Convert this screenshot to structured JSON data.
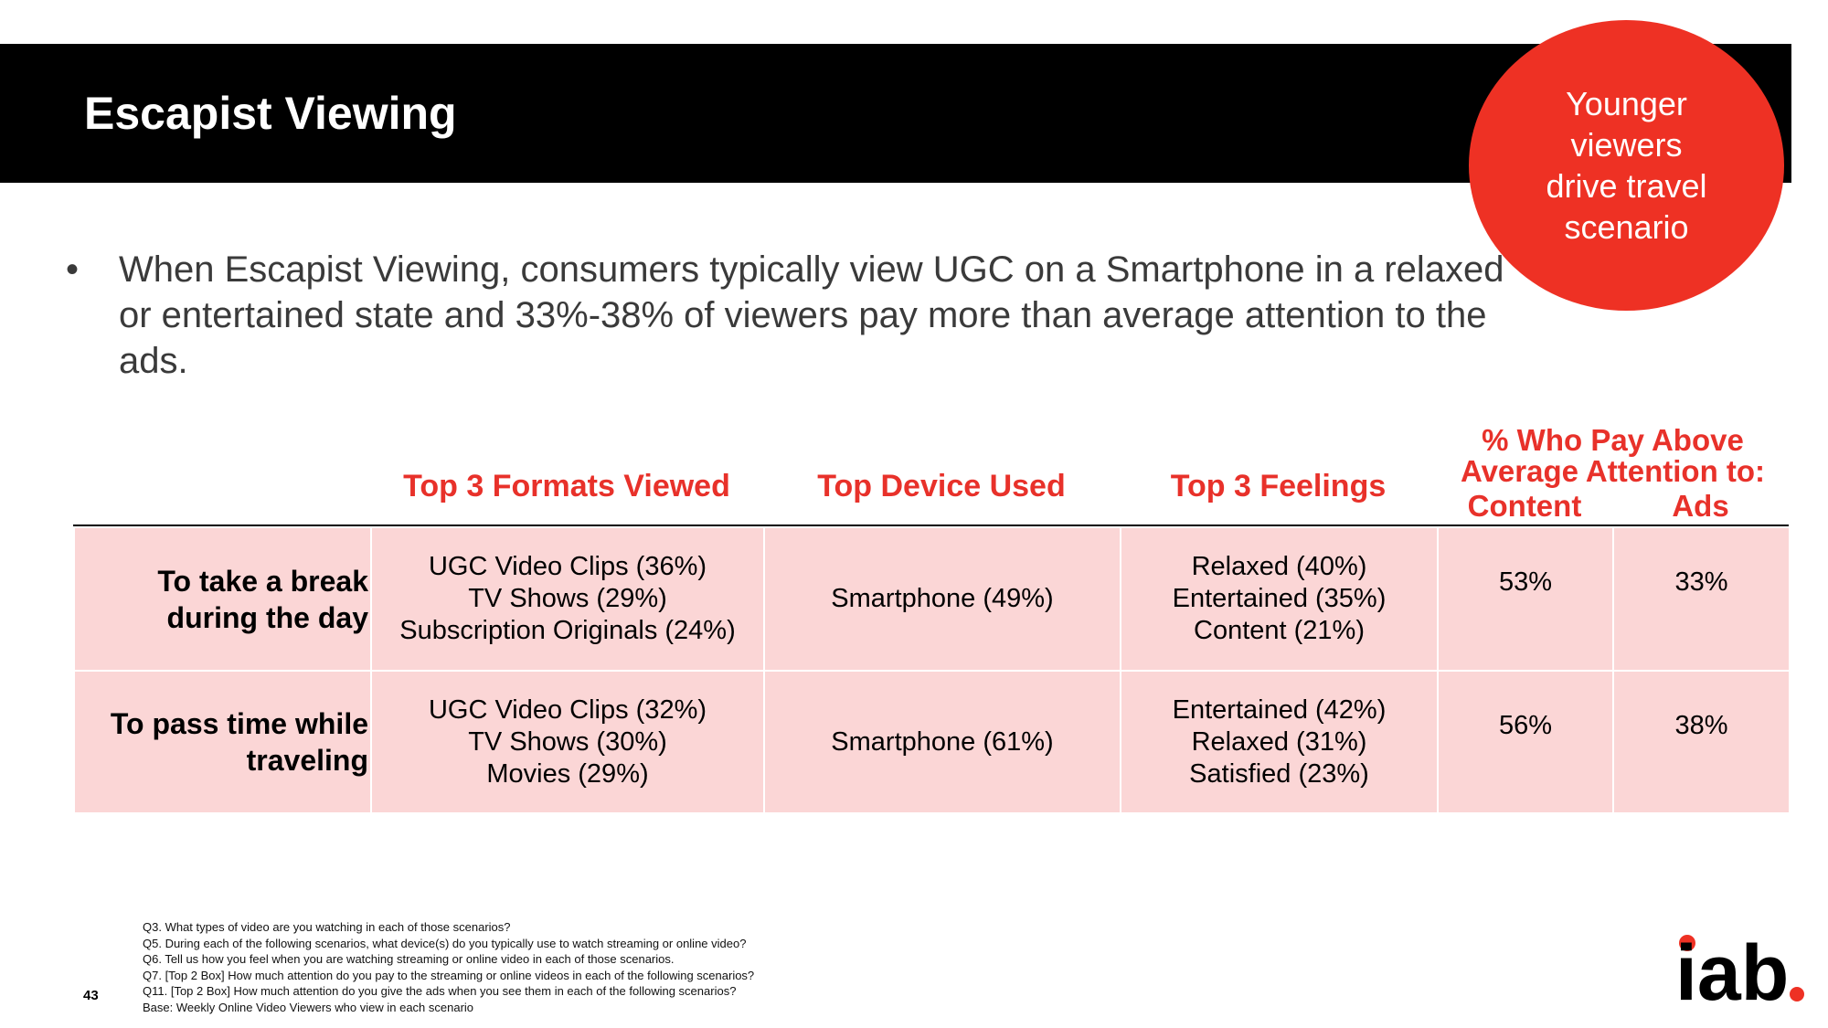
{
  "header": {
    "title": "Escapist Viewing"
  },
  "callout": {
    "text": "Younger viewers drive travel scenario",
    "color": "#ee3124"
  },
  "bullet": {
    "marker": "•",
    "text": "When Escapist Viewing, consumers typically view UGC on a Smartphone in a relaxed or entertained state and 33%-38% of viewers pay more than average attention to the ads."
  },
  "table": {
    "headers": {
      "formats": "Top 3 Formats Viewed",
      "device": "Top Device Used",
      "feelings": "Top 3 Feelings",
      "attention_line1": "% Who Pay Above",
      "attention_line2": "Average Attention to:",
      "content": "Content",
      "ads": "Ads"
    },
    "rows": [
      {
        "label_line1": "To take a break",
        "label_line2": "during the day",
        "formats": [
          "UGC Video Clips (36%)",
          "TV Shows (29%)",
          "Subscription Originals (24%)"
        ],
        "device": "Smartphone (49%)",
        "feelings": [
          "Relaxed (40%)",
          "Entertained (35%)",
          "Content (21%)"
        ],
        "content": "53%",
        "ads": "33%"
      },
      {
        "label_line1": "To pass time while",
        "label_line2": "traveling",
        "formats": [
          "UGC Video Clips (32%)",
          "TV Shows (30%)",
          "Movies (29%)"
        ],
        "device": "Smartphone (61%)",
        "feelings": [
          "Entertained (42%)",
          "Relaxed (31%)",
          "Satisfied (23%)"
        ],
        "content": "56%",
        "ads": "38%"
      }
    ],
    "header_color": "#e8312a",
    "row_color": "#fbd6d6"
  },
  "footnotes": [
    "Q3. What types of video are you watching in each of those scenarios?",
    "Q5. During each of the following scenarios, what device(s) do you typically use to watch streaming or online video?",
    "Q6. Tell us how you feel when you are watching streaming or online video in each of those scenarios.",
    "Q7. [Top 2 Box] How much attention do you pay to the streaming or online videos in each of the following scenarios?",
    "Q11. [Top 2 Box] How much attention do you give the ads when you see them in each of the following scenarios?",
    "Base: Weekly Online Video Viewers who view in each scenario"
  ],
  "page_number": "43",
  "logo": {
    "text": "iab",
    "dot_color": "#ee3124"
  }
}
